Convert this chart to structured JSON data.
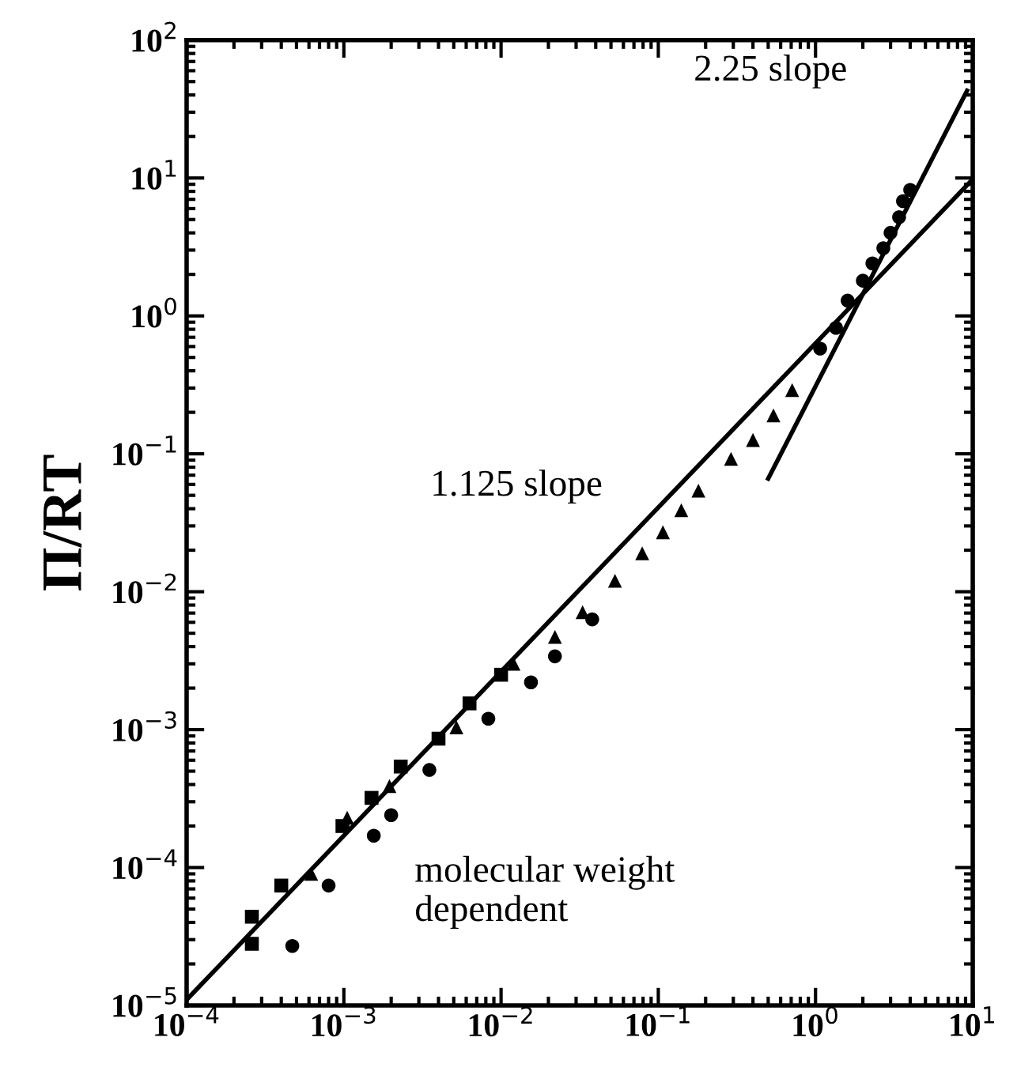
{
  "chart_data": {
    "type": "scatter",
    "ylabel": "Π/RT",
    "log": "xy",
    "grid": false,
    "legend": false,
    "xlim": [
      0.0001,
      10
    ],
    "ylim": [
      1e-05,
      100
    ],
    "xticks": [
      {
        "value": 0.0001,
        "label": "10$^{−4}$"
      },
      {
        "value": 0.001,
        "label": "10$^{−3}$"
      },
      {
        "value": 0.01,
        "label": "10$^{−2}$"
      },
      {
        "value": 0.1,
        "label": "10$^{−1}$"
      },
      {
        "value": 1,
        "label": "10$^{0}$"
      },
      {
        "value": 10,
        "label": "10$^{1}$"
      }
    ],
    "yticks": [
      {
        "value": 1e-05,
        "label": "10$^{−5}$"
      },
      {
        "value": 0.0001,
        "label": "10$^{−4}$"
      },
      {
        "value": 0.001,
        "label": "10$^{−3}$"
      },
      {
        "value": 0.01,
        "label": "10$^{−2}$"
      },
      {
        "value": 0.1,
        "label": "10$^{−1}$"
      },
      {
        "value": 1,
        "label": "10$^{0}$"
      },
      {
        "value": 10,
        "label": "10$^{1}$"
      },
      {
        "value": 100,
        "label": "10$^{2}$"
      }
    ],
    "annotations": [
      "2.25 slope",
      "1.125 slope",
      "molecular weight\ndependent"
    ],
    "series": [
      {
        "marker": "square",
        "color": "#000000",
        "x": [
          0.00026,
          0.00026,
          0.0004,
          0.00098,
          0.0015,
          0.0023,
          0.004,
          0.0063,
          0.01
        ],
        "values": [
          4.4e-05,
          2.8e-05,
          7.4e-05,
          0.0002,
          0.00032,
          0.00054,
          0.00086,
          0.00155,
          0.0025
        ]
      },
      {
        "marker": "circle",
        "color": "#000000",
        "x": [
          0.00047,
          0.0008,
          0.00155,
          0.002,
          0.0035,
          0.0083,
          0.0155,
          0.022,
          0.038,
          1.07,
          1.35,
          1.6,
          2.0,
          2.3,
          2.7,
          3.0,
          3.4,
          3.6,
          4.0
        ],
        "values": [
          2.7e-05,
          7.4e-05,
          0.00017,
          0.00024,
          0.00051,
          0.0012,
          0.0022,
          0.0034,
          0.0063,
          0.58,
          0.82,
          1.29,
          1.8,
          2.4,
          3.1,
          4.0,
          5.2,
          6.8,
          8.2
        ]
      },
      {
        "marker": "triangle",
        "color": "#000000",
        "x": [
          0.00062,
          0.00105,
          0.00195,
          0.0052,
          0.012,
          0.022,
          0.033,
          0.053,
          0.079,
          0.107,
          0.14,
          0.18,
          0.29,
          0.4,
          0.54,
          0.71
        ],
        "values": [
          9e-05,
          0.00023,
          0.00039,
          0.00104,
          0.003,
          0.0047,
          0.0071,
          0.012,
          0.019,
          0.027,
          0.039,
          0.054,
          0.092,
          0.126,
          0.19,
          0.29
        ]
      },
      {
        "type": "line",
        "marker": "none",
        "color": "#000000",
        "x": [
          0.0001,
          10
        ],
        "values": [
          1.1e-05,
          9.8
        ]
      },
      {
        "type": "line",
        "marker": "none",
        "color": "#000000",
        "x": [
          0.5,
          9.2
        ],
        "values": [
          0.066,
          43
        ]
      }
    ]
  }
}
